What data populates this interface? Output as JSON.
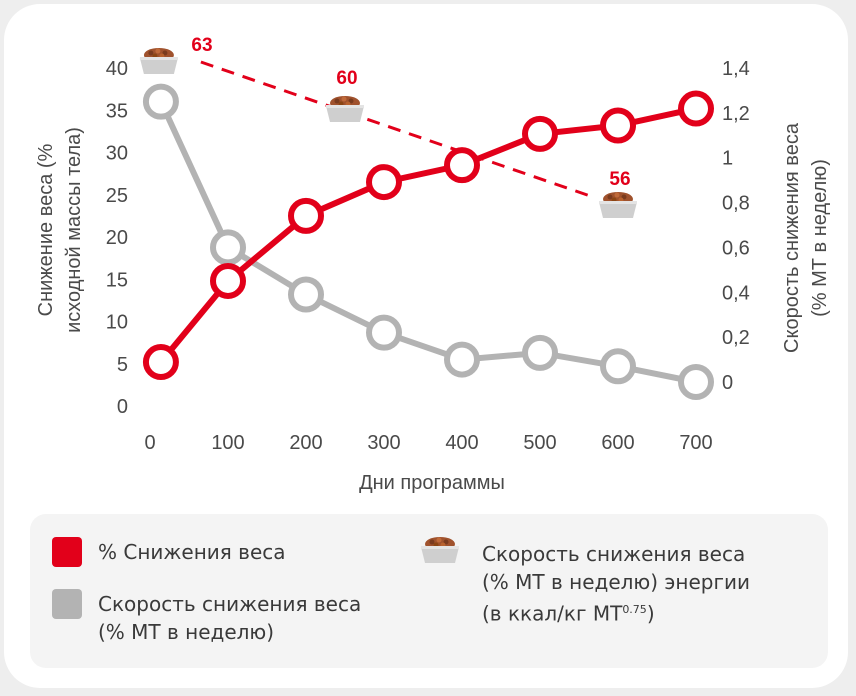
{
  "colors": {
    "weight_loss": "#e2001a",
    "rate": "#b3b3b3",
    "axis_text": "#4a4a4a",
    "energy_label": "#e2001a"
  },
  "chart_data": {
    "type": "line",
    "xlabel": "Дни программы",
    "ylabel_left": [
      "Снижение веса (%",
      "исходной массы тела)"
    ],
    "ylabel_right": [
      "Скорость снижения веса",
      "(% МТ в неделю)"
    ],
    "x_ticks": [
      "0",
      "100",
      "200",
      "300",
      "400",
      "500",
      "600",
      "700"
    ],
    "xlim": [
      0,
      700
    ],
    "y_left_ticks": [
      "0",
      "5",
      "10",
      "15",
      "20",
      "25",
      "30",
      "35",
      "40"
    ],
    "ylim_left": [
      0,
      40
    ],
    "y_right_ticks": [
      "0",
      "0,2",
      "0,4",
      "0,6",
      "0,8",
      "1",
      "1,2",
      "1,4"
    ],
    "ylim_right": [
      0,
      1.4
    ],
    "series": [
      {
        "name": "% Снижения веса",
        "axis": "left",
        "x": [
          14,
          100,
          200,
          300,
          400,
          500,
          600,
          700
        ],
        "values": [
          5.2,
          14.8,
          22.5,
          26.5,
          28.5,
          32.2,
          33.2,
          35.2
        ]
      },
      {
        "name": "Скорость снижения веса (% МТ в неделю)",
        "axis": "right",
        "x": [
          14,
          100,
          200,
          300,
          400,
          500,
          600,
          700
        ],
        "values": [
          1.25,
          0.6,
          0.39,
          0.22,
          0.1,
          0.13,
          0.07,
          0.0
        ]
      }
    ],
    "energy_series": {
      "name": "Скорость снижения веса (% МТ в неделю) энергии (в ккал/кг МТ0.75)",
      "points": [
        {
          "x": 14,
          "value": "63"
        },
        {
          "x": 250,
          "value": "60"
        },
        {
          "x": 600,
          "value": "56"
        }
      ]
    }
  },
  "legend": {
    "weight_loss": [
      "% Снижения веса"
    ],
    "rate": [
      "Скорость снижения веса",
      "(% МТ в неделю)"
    ],
    "energy_line1": "Скорость снижения веса",
    "energy_line2": "(% МТ в неделю) энергии",
    "energy_line3_prefix": "(в ккал/кг МТ",
    "energy_line3_sup": "0.75",
    "energy_line3_suffix": ")"
  }
}
